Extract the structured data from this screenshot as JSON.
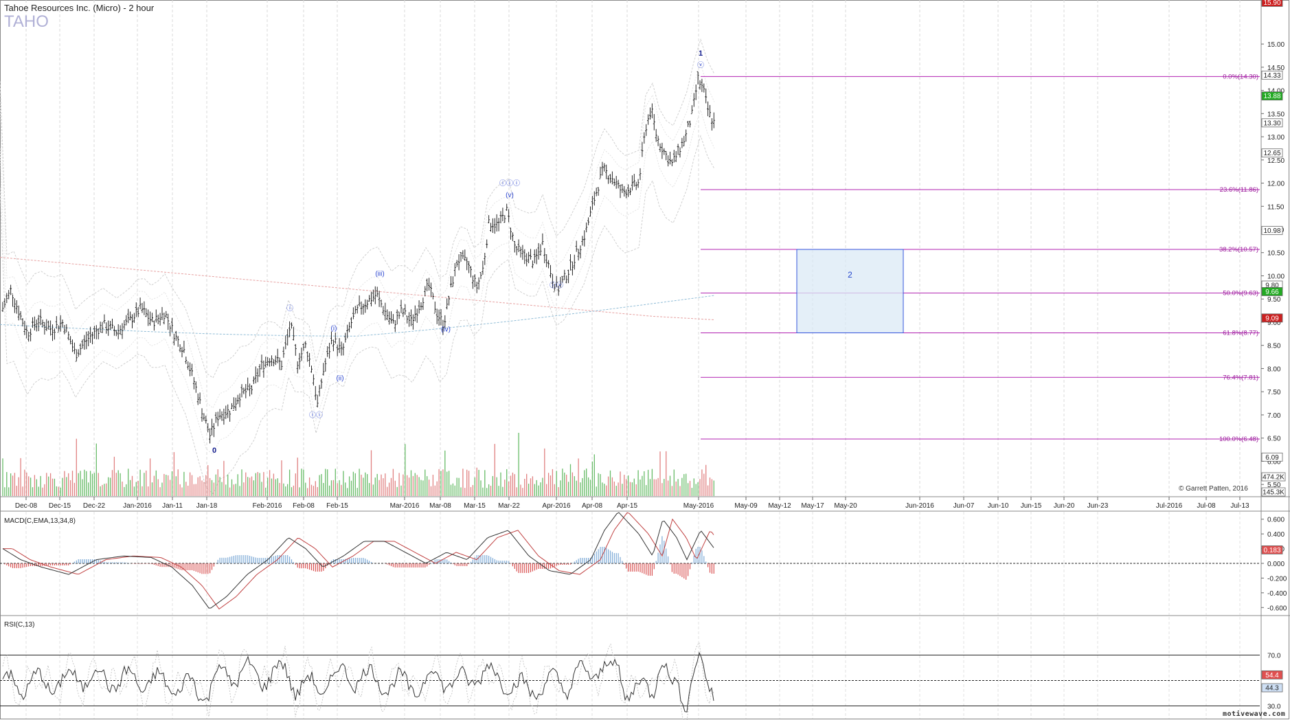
{
  "header": {
    "title": "Tahoe Resources Inc. (Micro) - 2 hour",
    "symbol": "TAHO",
    "copyright": "© Garrett Patten, 2016",
    "brand": "motivewave.com"
  },
  "chart_data": {
    "type": "bar",
    "subtype": "ohlc",
    "title": "Tahoe Resources Inc. (Micro) - 2 hour",
    "xlabel": "",
    "ylabel": "",
    "x_ticks": [
      "Dec-08",
      "Dec-15",
      "Dec-22",
      "Jan-2016",
      "Jan-11",
      "Jan-18",
      "Feb-2016",
      "Feb-08",
      "Feb-15",
      "Mar-2016",
      "Mar-08",
      "Mar-15",
      "Mar-22",
      "Apr-2016",
      "Apr-08",
      "Apr-15",
      "May-2016",
      "May-09",
      "May-12",
      "May-17",
      "May-20",
      "Jun-2016",
      "Jun-07",
      "Jun-10",
      "Jun-15",
      "Jun-20",
      "Jun-23",
      "Jul-2016",
      "Jul-08",
      "Jul-13"
    ],
    "price_axis": {
      "ylim": [
        5.25,
        15.95
      ],
      "ticks": [
        "15.00",
        "14.50",
        "14.00",
        "13.50",
        "13.00",
        "12.50",
        "12.00",
        "11.50",
        "11.00",
        "10.50",
        "10.00",
        "9.50",
        "9.00",
        "8.50",
        "8.00",
        "7.50",
        "7.00",
        "6.50",
        "6.00",
        "5.50"
      ]
    },
    "price_badges": [
      {
        "value": "15.90",
        "color": "#cc2020"
      },
      {
        "value": "14.33",
        "color": "#ffffff"
      },
      {
        "value": "13.88",
        "color": "#22aa22"
      },
      {
        "value": "13.30",
        "color": "#ffffff"
      },
      {
        "value": "12.65",
        "color": "#ffffff"
      },
      {
        "value": "10.98",
        "color": "#ffffff"
      },
      {
        "value": "9.80",
        "color": "#ffffff"
      },
      {
        "value": "9.66",
        "color": "#22aa22"
      },
      {
        "value": "9.09",
        "color": "#cc2020"
      },
      {
        "value": "6.09",
        "color": "#ffffff"
      }
    ],
    "volume_badges": [
      "474.2K",
      "145.3K"
    ],
    "fib_levels": [
      {
        "label": "0.0%(14.30)",
        "price": 14.3
      },
      {
        "label": "23.6%(11.86)",
        "price": 11.86
      },
      {
        "label": "38.2%(10.57)",
        "price": 10.57
      },
      {
        "label": "50.0%(9.63)",
        "price": 9.63
      },
      {
        "label": "61.8%(8.77)",
        "price": 8.77
      },
      {
        "label": "76.4%(7.81)",
        "price": 7.81
      },
      {
        "label": "100.0%(6.48)",
        "price": 6.48
      }
    ],
    "target_box": {
      "label": "2",
      "from": "May-12",
      "to": "May-2016+",
      "high": 10.57,
      "low": 8.77
    },
    "wave_labels": [
      {
        "text": "0",
        "date": "Jan-18",
        "price": 6.2,
        "style": "bold"
      },
      {
        "text": "ⓘ",
        "date": "Feb-2016+",
        "price": 9.1,
        "style": "circle"
      },
      {
        "text": "ⓘⓘ",
        "date": "Feb-08",
        "price": 6.9,
        "style": "circle"
      },
      {
        "text": "(i)",
        "date": "Feb-15",
        "price": 8.8,
        "style": "paren"
      },
      {
        "text": "(ii)",
        "date": "Feb-15",
        "price": 7.8,
        "style": "paren"
      },
      {
        "text": "(iii)",
        "date": "Mar-2016-",
        "price": 9.95,
        "style": "paren"
      },
      {
        "text": "(iv)",
        "date": "Mar-08",
        "price": 8.8,
        "style": "paren"
      },
      {
        "text": "ⓘⓘⓘ",
        "date": "Mar-22",
        "price": 11.85,
        "style": "circle"
      },
      {
        "text": "(v)",
        "date": "Mar-22",
        "price": 11.7,
        "style": "paren"
      },
      {
        "text": "ⓘⓥ",
        "date": "Apr-2016-",
        "price": 9.7,
        "style": "circle"
      },
      {
        "text": "ⓥ",
        "date": "May-2016",
        "price": 14.45,
        "style": "circle"
      },
      {
        "text": "1",
        "date": "May-2016",
        "price": 14.75,
        "style": "bold"
      }
    ],
    "volume": {
      "max_label": "474.2K",
      "min_label": "145.3K"
    },
    "macd": {
      "label": "MACD(C,EMA,13,34,8)",
      "ylim": [
        -0.7,
        0.7
      ],
      "ticks": [
        "0.600",
        "0.400",
        "0.200",
        "0.000",
        "-0.200",
        "-0.400",
        "-0.600"
      ],
      "badge": "0.183"
    },
    "rsi": {
      "label": "RSI(C,13)",
      "ylim": [
        20,
        100
      ],
      "ticks": [
        "70.0",
        "30.0"
      ],
      "badges": [
        "54.4",
        "44.3"
      ]
    }
  }
}
